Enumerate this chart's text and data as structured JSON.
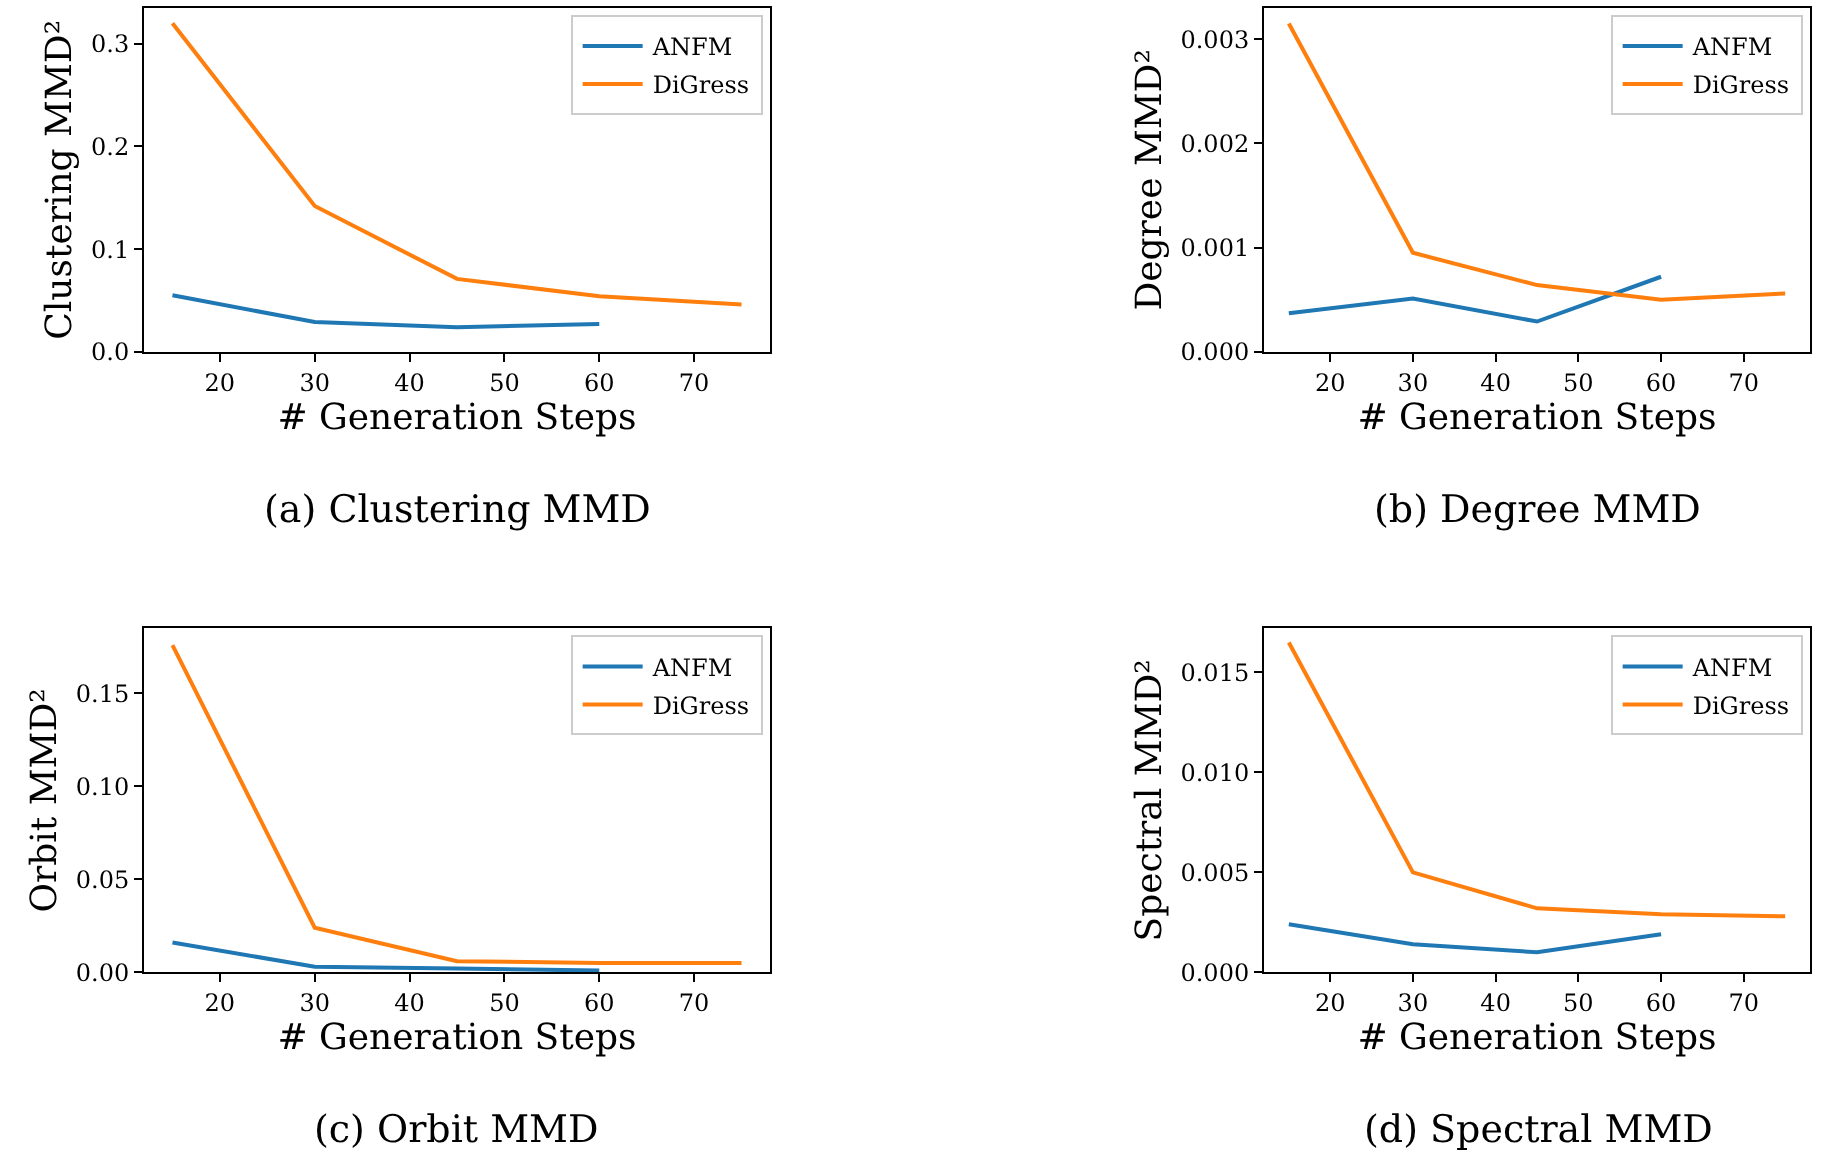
{
  "chart_data": [
    {
      "type": "line",
      "xlabel": "# Generation Steps",
      "ylabel": "Clustering MMD²",
      "annotations": [
        "(a) Clustering MMD"
      ],
      "xlim": [
        12,
        78
      ],
      "xticks": [
        20,
        30,
        40,
        50,
        60,
        70
      ],
      "ylim": [
        0,
        0.335
      ],
      "yticks": [
        {
          "value": 0,
          "label": "0.0"
        },
        0.1,
        0.2,
        0.3
      ],
      "legend": "top right",
      "series": [
        {
          "name": "ANFM",
          "color": "#1f77b4",
          "x": [
            15,
            30,
            45,
            60
          ],
          "values": [
            0.055,
            0.029,
            0.024,
            0.027
          ]
        },
        {
          "name": "DiGress",
          "color": "#ff7f0e",
          "x": [
            15,
            30,
            45,
            60,
            75
          ],
          "values": [
            0.32,
            0.142,
            0.071,
            0.054,
            0.046
          ]
        }
      ]
    },
    {
      "type": "line",
      "xlabel": "# Generation Steps",
      "ylabel": "Degree MMD²",
      "annotations": [
        "(b) Degree MMD"
      ],
      "xlim": [
        12,
        78
      ],
      "xticks": [
        20,
        30,
        40,
        50,
        60,
        70
      ],
      "ylim": [
        0,
        0.0033
      ],
      "yticks": [
        {
          "value": 0,
          "label": "0.000"
        },
        0.001,
        0.002,
        0.003
      ],
      "legend": "top right",
      "series": [
        {
          "name": "ANFM",
          "color": "#1f77b4",
          "x": [
            15,
            30,
            45,
            60
          ],
          "values": [
            0.00037,
            0.00051,
            0.00029,
            0.00072
          ]
        },
        {
          "name": "DiGress",
          "color": "#ff7f0e",
          "x": [
            15,
            30,
            45,
            60,
            75
          ],
          "values": [
            0.00315,
            0.00095,
            0.00064,
            0.0005,
            0.00056
          ]
        }
      ]
    },
    {
      "type": "line",
      "xlabel": "# Generation Steps",
      "ylabel": "Orbit MMD²",
      "annotations": [
        "(c) Orbit MMD"
      ],
      "xlim": [
        12,
        78
      ],
      "xticks": [
        20,
        30,
        40,
        50,
        60,
        70
      ],
      "ylim": [
        0,
        0.185
      ],
      "yticks": [
        {
          "value": 0,
          "label": "0.00"
        },
        0.05,
        {
          "value": 0.1,
          "label": "0.10"
        },
        0.15
      ],
      "legend": "top right",
      "series": [
        {
          "name": "ANFM",
          "color": "#1f77b4",
          "x": [
            15,
            30,
            45,
            60
          ],
          "values": [
            0.016,
            0.003,
            0.002,
            0.001
          ]
        },
        {
          "name": "DiGress",
          "color": "#ff7f0e",
          "x": [
            15,
            30,
            45,
            60,
            75
          ],
          "values": [
            0.176,
            0.024,
            0.006,
            0.005,
            0.005
          ]
        }
      ]
    },
    {
      "type": "line",
      "xlabel": "# Generation Steps",
      "ylabel": "Spectral MMD²",
      "annotations": [
        "(d) Spectral MMD"
      ],
      "xlim": [
        12,
        78
      ],
      "xticks": [
        20,
        30,
        40,
        50,
        60,
        70
      ],
      "ylim": [
        0,
        0.0172
      ],
      "yticks": [
        {
          "value": 0,
          "label": "0.000"
        },
        0.005,
        {
          "value": 0.01,
          "label": "0.010"
        },
        0.015
      ],
      "legend": "top right",
      "series": [
        {
          "name": "ANFM",
          "color": "#1f77b4",
          "x": [
            15,
            30,
            45,
            60
          ],
          "values": [
            0.0024,
            0.0014,
            0.001,
            0.0019
          ]
        },
        {
          "name": "DiGress",
          "color": "#ff7f0e",
          "x": [
            15,
            30,
            45,
            60,
            75
          ],
          "values": [
            0.0165,
            0.005,
            0.0032,
            0.0029,
            0.0028
          ]
        }
      ]
    }
  ]
}
